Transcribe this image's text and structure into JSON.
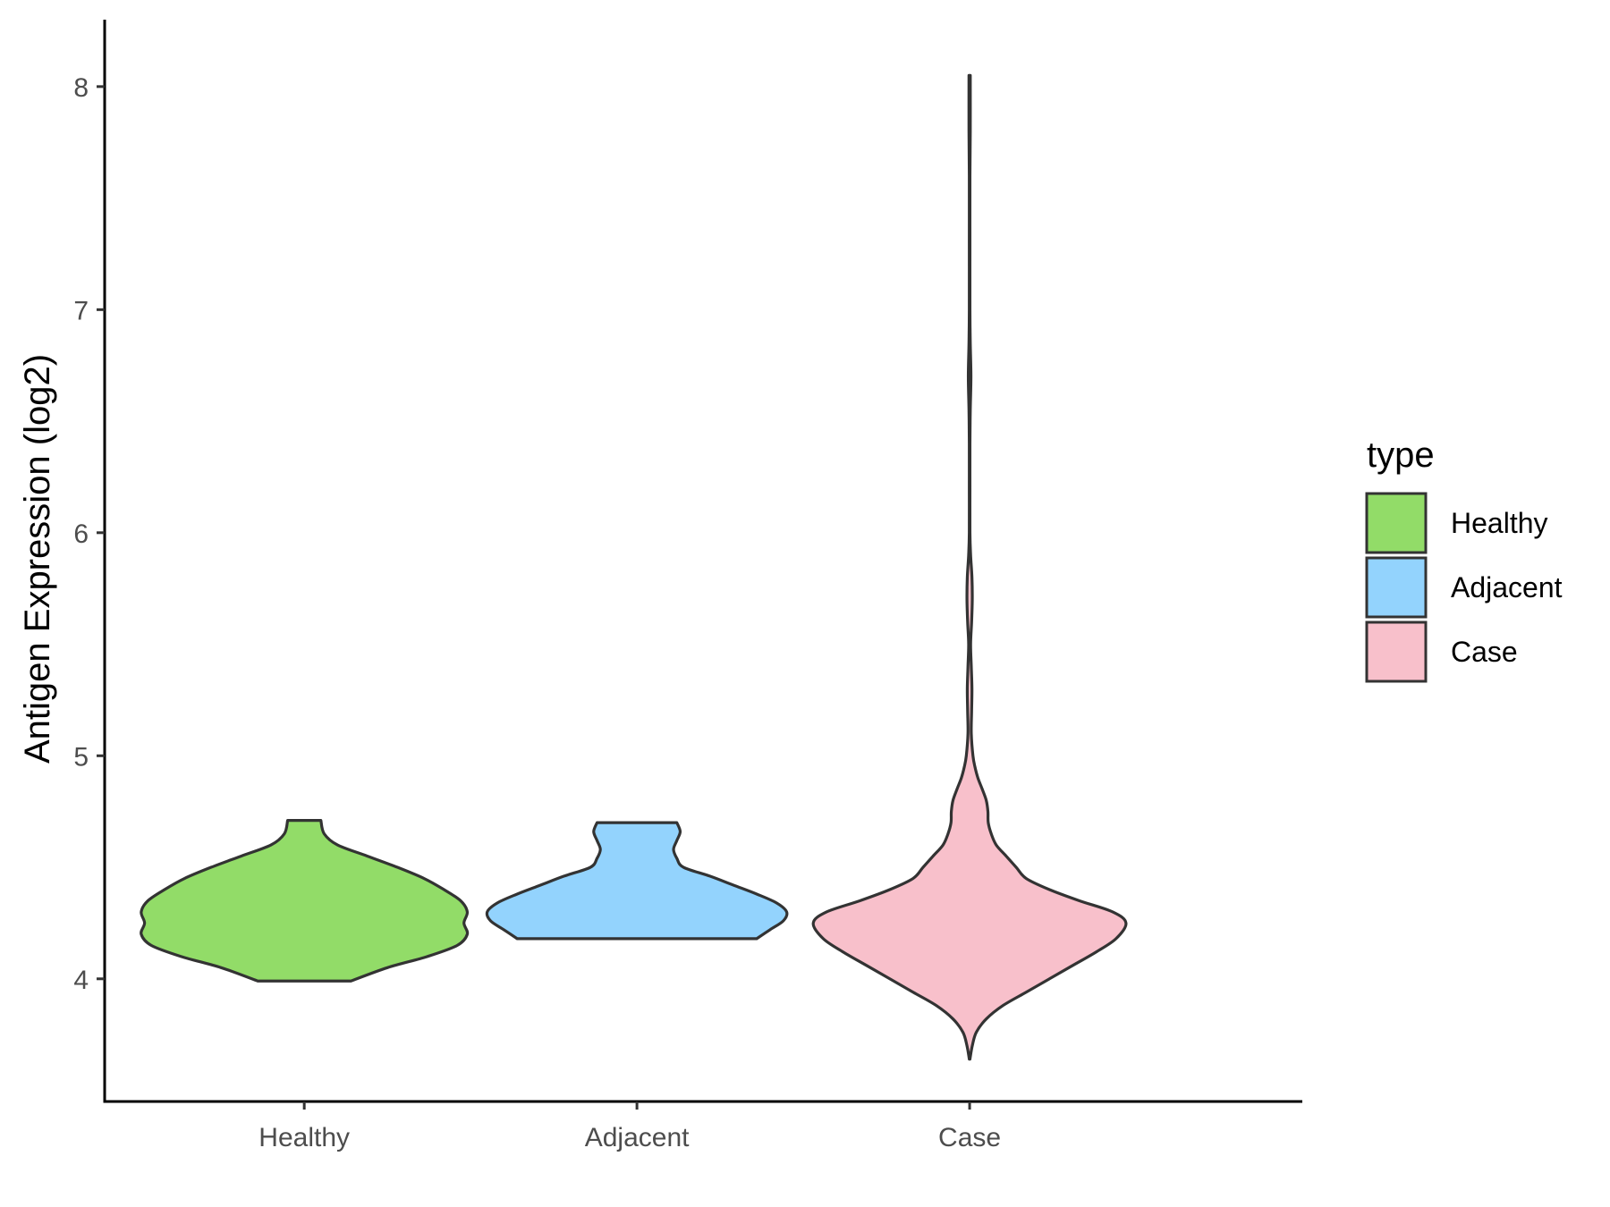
{
  "chart_data": {
    "type": "violin",
    "title": "",
    "xlabel": "",
    "ylabel": "Antigen Expression (log2)",
    "ylim": [
      3.45,
      8.3
    ],
    "yticks": [
      4,
      5,
      6,
      7,
      8
    ],
    "categories": [
      "Healthy",
      "Adjacent",
      "Case"
    ],
    "grid": false,
    "legend": {
      "title": "type",
      "position": "right",
      "entries": [
        {
          "label": "Healthy",
          "color": "#92dc68"
        },
        {
          "label": "Adjacent",
          "color": "#93d3fd"
        },
        {
          "label": "Case",
          "color": "#f8c0cb"
        }
      ]
    },
    "series": [
      {
        "category": "Healthy",
        "color": "#92dc68",
        "density": [
          [
            3.99,
            0.14
          ],
          [
            4.05,
            0.25
          ],
          [
            4.1,
            0.37
          ],
          [
            4.15,
            0.46
          ],
          [
            4.2,
            0.49
          ],
          [
            4.25,
            0.48
          ],
          [
            4.3,
            0.49
          ],
          [
            4.35,
            0.47
          ],
          [
            4.4,
            0.42
          ],
          [
            4.45,
            0.36
          ],
          [
            4.5,
            0.28
          ],
          [
            4.55,
            0.19
          ],
          [
            4.6,
            0.1
          ],
          [
            4.65,
            0.06
          ],
          [
            4.71,
            0.05
          ]
        ]
      },
      {
        "category": "Adjacent",
        "color": "#93d3fd",
        "density": [
          [
            4.18,
            0.36
          ],
          [
            4.22,
            0.4
          ],
          [
            4.26,
            0.44
          ],
          [
            4.3,
            0.45
          ],
          [
            4.34,
            0.42
          ],
          [
            4.38,
            0.36
          ],
          [
            4.42,
            0.29
          ],
          [
            4.46,
            0.22
          ],
          [
            4.5,
            0.14
          ],
          [
            4.54,
            0.12
          ],
          [
            4.58,
            0.11
          ],
          [
            4.62,
            0.12
          ],
          [
            4.66,
            0.13
          ],
          [
            4.7,
            0.12
          ]
        ]
      },
      {
        "category": "Case",
        "color": "#f8c0cb",
        "density": [
          [
            3.64,
            0.001
          ],
          [
            3.7,
            0.008
          ],
          [
            3.76,
            0.02
          ],
          [
            3.82,
            0.05
          ],
          [
            3.88,
            0.1
          ],
          [
            3.94,
            0.17
          ],
          [
            4.0,
            0.24
          ],
          [
            4.06,
            0.31
          ],
          [
            4.12,
            0.38
          ],
          [
            4.18,
            0.44
          ],
          [
            4.25,
            0.47
          ],
          [
            4.3,
            0.43
          ],
          [
            4.35,
            0.33
          ],
          [
            4.4,
            0.24
          ],
          [
            4.45,
            0.17
          ],
          [
            4.5,
            0.14
          ],
          [
            4.55,
            0.11
          ],
          [
            4.6,
            0.08
          ],
          [
            4.65,
            0.065
          ],
          [
            4.7,
            0.056
          ],
          [
            4.75,
            0.055
          ],
          [
            4.8,
            0.05
          ],
          [
            4.85,
            0.038
          ],
          [
            4.9,
            0.025
          ],
          [
            4.95,
            0.016
          ],
          [
            5.0,
            0.01
          ],
          [
            5.1,
            0.005
          ],
          [
            5.2,
            0.006
          ],
          [
            5.3,
            0.007
          ],
          [
            5.4,
            0.005
          ],
          [
            5.5,
            0.003
          ],
          [
            5.6,
            0.006
          ],
          [
            5.7,
            0.008
          ],
          [
            5.8,
            0.007
          ],
          [
            5.9,
            0.003
          ],
          [
            6.0,
            0.001
          ],
          [
            6.2,
            0.001
          ],
          [
            6.4,
            0.001
          ],
          [
            6.55,
            0.002
          ],
          [
            6.7,
            0.004
          ],
          [
            6.85,
            0.002
          ],
          [
            7.0,
            0.001
          ],
          [
            7.3,
            0.001
          ],
          [
            7.6,
            0.001
          ],
          [
            7.8,
            0.002
          ],
          [
            8.05,
            0.002
          ]
        ]
      }
    ]
  }
}
